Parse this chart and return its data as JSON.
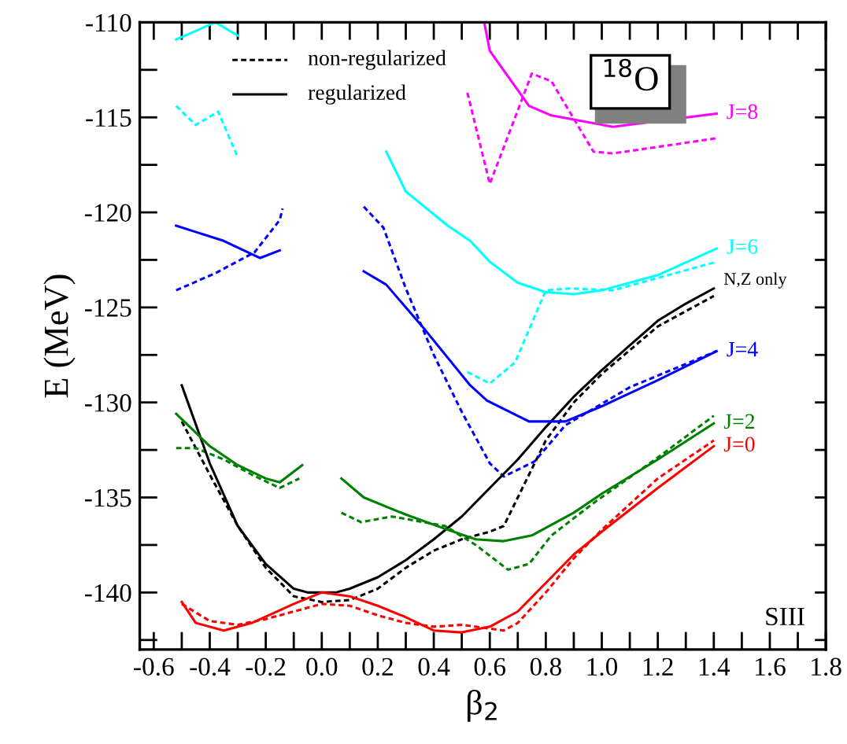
{
  "chart_data": {
    "type": "line",
    "xlabel": "β$_{2}$",
    "ylabel": "E (MeV)",
    "annotations": [
      "non-regularized",
      "regularized",
      "$^{18}$O",
      "SIII"
    ],
    "grid": false,
    "marker": "none",
    "xlim": [
      -0.65,
      1.8
    ],
    "ylim": [
      -143,
      -110
    ],
    "xticks": [
      {
        "value": -0.6,
        "label": "-0.6"
      },
      {
        "value": -0.5,
        "label": null
      },
      {
        "value": -0.4,
        "label": "-0.4"
      },
      {
        "value": -0.3,
        "label": null
      },
      {
        "value": -0.2,
        "label": "-0.2"
      },
      {
        "value": -0.1,
        "label": null
      },
      {
        "value": 0,
        "label": "0.0"
      },
      {
        "value": 0.1,
        "label": null
      },
      {
        "value": 0.2,
        "label": "0.2"
      },
      {
        "value": 0.3,
        "label": null
      },
      {
        "value": 0.4,
        "label": "0.4"
      },
      {
        "value": 0.5,
        "label": null
      },
      {
        "value": 0.6,
        "label": "0.6"
      },
      {
        "value": 0.7,
        "label": null
      },
      {
        "value": 0.8,
        "label": "0.8"
      },
      {
        "value": 0.9,
        "label": null
      },
      {
        "value": 1.0,
        "label": "1.0"
      },
      {
        "value": 1.1,
        "label": null
      },
      {
        "value": 1.2,
        "label": "1.2"
      },
      {
        "value": 1.3,
        "label": null
      },
      {
        "value": 1.4,
        "label": "1.4"
      },
      {
        "value": 1.5,
        "label": null
      },
      {
        "value": 1.6,
        "label": "1.6"
      },
      {
        "value": 1.7,
        "label": null
      },
      {
        "value": 1.8,
        "label": "1.8"
      }
    ],
    "yticks": [
      {
        "value": -142.5,
        "label": null
      },
      {
        "value": -140,
        "label": "-140"
      },
      {
        "value": -137.5,
        "label": null
      },
      {
        "value": -135,
        "label": "-135"
      },
      {
        "value": -132.5,
        "label": null
      },
      {
        "value": -130,
        "label": "-130"
      },
      {
        "value": -127.5,
        "label": null
      },
      {
        "value": -125,
        "label": "-125"
      },
      {
        "value": -122.5,
        "label": null
      },
      {
        "value": -120,
        "label": "-120"
      },
      {
        "value": -117.5,
        "label": null
      },
      {
        "value": -115,
        "label": "-115"
      },
      {
        "value": -112.5,
        "label": null
      },
      {
        "value": -110,
        "label": "-110"
      }
    ],
    "series": [
      {
        "color": "#000000",
        "line_style": "dashed",
        "x": [
          -0.5,
          -0.4,
          -0.3,
          -0.2,
          -0.1,
          0.0,
          0.1,
          0.2,
          0.3,
          0.4,
          0.5,
          0.6,
          0.65,
          0.7,
          0.8,
          0.9,
          1.0,
          1.2,
          1.4
        ],
        "values": [
          -131,
          -133.8,
          -136.5,
          -138.7,
          -140.2,
          -140.5,
          -140.4,
          -139.8,
          -138.7,
          -137.8,
          -137.2,
          -136.8,
          -136.5,
          -135,
          -132,
          -130,
          -128.5,
          -126,
          -124.4
        ]
      },
      {
        "color": "#ff0000",
        "line_style": "dashed",
        "x": [
          -0.5,
          -0.4,
          -0.3,
          -0.2,
          -0.1,
          0.0,
          0.1,
          0.2,
          0.3,
          0.4,
          0.5,
          0.6,
          0.65,
          0.7,
          0.8,
          0.9,
          1.0,
          1.2,
          1.4
        ],
        "values": [
          -140.6,
          -141.5,
          -141.7,
          -141.4,
          -141,
          -140.6,
          -140.7,
          -141.2,
          -141.6,
          -141.8,
          -141.7,
          -141.9,
          -142,
          -141.6,
          -140,
          -138.2,
          -136.7,
          -134,
          -132
        ]
      },
      {
        "color": "#008000",
        "line_style": "dashed",
        "x": [
          -0.52,
          -0.45,
          -0.35,
          -0.25,
          -0.15,
          -0.08,
          0.0,
          0.07,
          0.14,
          0.25,
          0.44,
          0.55,
          0.665,
          0.74,
          0.82,
          0.97,
          1.2,
          1.4
        ],
        "values": [
          -132.4,
          -132.4,
          -133,
          -133.8,
          -134.5,
          -134,
          null,
          -135.8,
          -136.3,
          -136,
          -136.5,
          -137.5,
          -138.8,
          -138.5,
          -137,
          -135.3,
          -132.9,
          -130.7
        ]
      },
      {
        "color": "#0000ff",
        "line_style": "dashed",
        "x": [
          -0.52,
          -0.38,
          -0.24,
          -0.15,
          -0.14,
          0.0,
          0.15,
          0.22,
          0.3,
          0.4,
          0.5,
          0.6,
          0.65,
          0.76,
          0.87,
          1.1,
          1.41
        ],
        "values": [
          -124.1,
          -123.2,
          -122.1,
          -120.4,
          -119.8,
          null,
          -119.7,
          -120.8,
          -124,
          -127.5,
          -130.5,
          -133.2,
          -133.9,
          -133.1,
          -131.2,
          -129.2,
          -127.3
        ]
      },
      {
        "color": "#00ffff",
        "line_style": "dashed",
        "x": [
          -0.52,
          -0.45,
          -0.37,
          -0.3,
          0.0,
          0.52,
          0.6,
          0.69,
          0.8,
          0.89,
          1.04,
          1.41
        ],
        "values": [
          -114.4,
          -115.4,
          -114.7,
          -117.1,
          null,
          -128.4,
          -129,
          -127.9,
          -124.1,
          -124,
          -124.1,
          -122.6
        ]
      },
      {
        "color": "#ff00ff",
        "line_style": "dashed",
        "x": [
          0.52,
          0.6,
          0.75,
          0.82,
          0.97,
          1.04,
          1.41
        ],
        "values": [
          -113.7,
          -118.5,
          -112.7,
          -113.1,
          -116.8,
          -116.9,
          -116.1
        ]
      },
      {
        "name": "N,Z only",
        "color": "#000000",
        "line_style": "solid",
        "x": [
          -0.5,
          -0.4,
          -0.3,
          -0.2,
          -0.1,
          -0.05,
          0.05,
          0.1,
          0.2,
          0.3,
          0.4,
          0.5,
          0.6,
          0.7,
          0.8,
          0.9,
          1.0,
          1.1,
          1.2,
          1.3,
          1.4
        ],
        "values": [
          -129.1,
          -133.2,
          -136.5,
          -138.5,
          -139.8,
          -140,
          -140,
          -139.8,
          -139.2,
          -138.3,
          -137.2,
          -136,
          -134.5,
          -133,
          -131.3,
          -129.7,
          -128.3,
          -127,
          -125.7,
          -124.8,
          -124
        ]
      },
      {
        "name": "J=0",
        "color": "#ff0000",
        "line_style": "solid",
        "x": [
          -0.5,
          -0.45,
          -0.35,
          -0.25,
          -0.1,
          0.0,
          0.1,
          0.2,
          0.3,
          0.4,
          0.5,
          0.6,
          0.7,
          0.8,
          0.9,
          1.0,
          1.2,
          1.4
        ],
        "values": [
          -140.5,
          -141.6,
          -142,
          -141.6,
          -140.6,
          -140,
          -140.2,
          -140.7,
          -141.3,
          -142,
          -142.1,
          -141.8,
          -141,
          -139.5,
          -138,
          -136.8,
          -134.5,
          -132.3
        ]
      },
      {
        "name": "J=2",
        "color": "#008000",
        "line_style": "solid",
        "x": [
          -0.52,
          -0.4,
          -0.3,
          -0.2,
          -0.15,
          -0.07,
          0.0,
          0.07,
          0.15,
          0.3,
          0.45,
          0.55,
          0.65,
          0.75,
          0.9,
          1.0,
          1.2,
          1.4
        ],
        "values": [
          -130.6,
          -132.3,
          -133.3,
          -134,
          -134.2,
          -133.3,
          null,
          -134,
          -135,
          -135.9,
          -136.7,
          -137.2,
          -137.3,
          -137,
          -135.8,
          -134.8,
          -133,
          -131.1
        ]
      },
      {
        "name": "J=4",
        "color": "#0000ff",
        "line_style": "solid",
        "x": [
          -0.52,
          -0.35,
          -0.22,
          -0.15,
          0.0,
          0.15,
          0.23,
          0.37,
          0.53,
          0.59,
          0.74,
          0.87,
          1.0,
          1.19,
          1.41
        ],
        "values": [
          -120.7,
          -121.5,
          -122.4,
          -122,
          null,
          -123.1,
          -123.8,
          -126.2,
          -129.1,
          -129.9,
          -131,
          -131,
          -130.2,
          -128.9,
          -127.3
        ]
      },
      {
        "name": "J=6",
        "color": "#00ffff",
        "line_style": "solid",
        "x": [
          -0.52,
          -0.38,
          -0.3,
          0.0,
          0.23,
          0.3,
          0.45,
          0.53,
          0.6,
          0.7,
          0.8,
          0.9,
          1.0,
          1.2,
          1.41
        ],
        "values": [
          -110.9,
          -110,
          -110.7,
          null,
          -116.8,
          -118.9,
          -120.7,
          -121.5,
          -122.6,
          -123.7,
          -124.2,
          -124.3,
          -124.1,
          -123.3,
          -121.9
        ]
      },
      {
        "name": "J=8",
        "color": "#ff00ff",
        "line_style": "solid",
        "x": [
          0.58,
          0.6,
          0.74,
          0.82,
          1.04,
          1.41
        ],
        "values": [
          -110,
          -111.5,
          -114.4,
          -114.9,
          -115.5,
          -114.8
        ]
      }
    ]
  }
}
